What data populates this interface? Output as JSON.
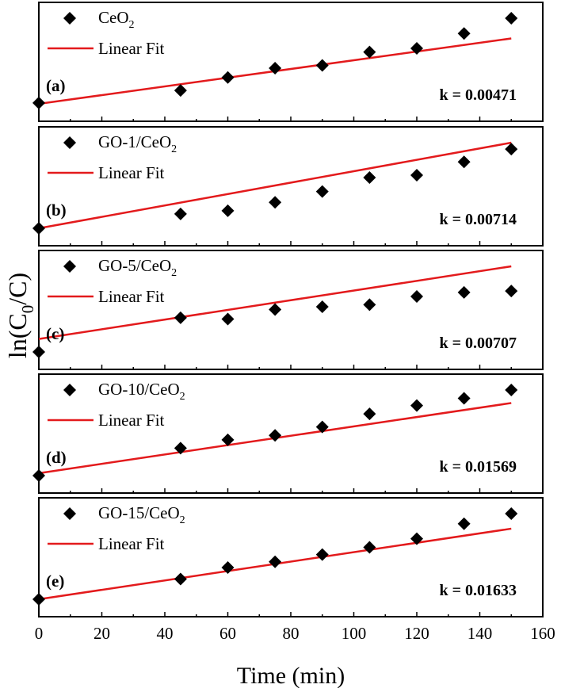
{
  "figure": {
    "ylabel_main": "ln(C",
    "ylabel_sub": "0",
    "ylabel_tail": "/C)",
    "xlabel": "Time (min)"
  },
  "chart_data": {
    "type": "scatter",
    "shared_x_axis": {
      "label": "Time (min)",
      "range": [
        0,
        160
      ],
      "ticks": [
        0,
        20,
        40,
        60,
        80,
        100,
        120,
        140,
        160
      ],
      "minor_step": 10
    },
    "y_axis_label": "ln(C0/C)",
    "grid": false,
    "legend_position": "top-left",
    "panels": [
      {
        "panel_label": "(a)",
        "series_name_main": "CeO",
        "series_name_sub": "2",
        "fit_label": "Linear Fit",
        "k_label": "k = 0.00471",
        "x": [
          0,
          45,
          60,
          75,
          90,
          105,
          120,
          135,
          150
        ],
        "y": [
          0.01,
          0.145,
          0.285,
          0.385,
          0.415,
          0.56,
          0.6,
          0.76,
          0.925
        ],
        "fit": {
          "intercept": 0.0,
          "slope": 0.00471
        }
      },
      {
        "panel_label": "(b)",
        "series_name_main": "GO-1/CeO",
        "series_name_sub": "2",
        "fit_label": "Linear Fit",
        "k_label": "k = 0.00714",
        "x": [
          0,
          45,
          60,
          75,
          90,
          105,
          120,
          135,
          150
        ],
        "y": [
          0.0,
          0.18,
          0.22,
          0.325,
          0.46,
          0.635,
          0.665,
          0.83,
          0.99
        ],
        "fit": {
          "intercept": 0.0,
          "slope": 0.00714
        }
      },
      {
        "panel_label": "(c)",
        "series_name_main": "GO-5/CeO",
        "series_name_sub": "2",
        "fit_label": "Linear Fit",
        "k_label": "k = 0.00707",
        "x": [
          0,
          45,
          60,
          75,
          90,
          105,
          120,
          135,
          150
        ],
        "y": [
          -0.01,
          0.49,
          0.47,
          0.61,
          0.65,
          0.68,
          0.8,
          0.86,
          0.88
        ],
        "fit": {
          "intercept": 0.18,
          "slope": 0.00707
        }
      },
      {
        "panel_label": "(d)",
        "series_name_main": "GO-10/CeO",
        "series_name_sub": "2",
        "fit_label": "Linear Fit",
        "k_label": "k = 0.01569",
        "x": [
          0,
          45,
          60,
          75,
          90,
          105,
          120,
          135,
          150
        ],
        "y": [
          0.05,
          0.97,
          1.25,
          1.4,
          1.68,
          2.12,
          2.4,
          2.64,
          2.92
        ],
        "fit": {
          "intercept": 0.13,
          "slope": 0.01569
        }
      },
      {
        "panel_label": "(e)",
        "series_name_main": "GO-15/CeO",
        "series_name_sub": "2",
        "fit_label": "Linear Fit",
        "k_label": "k = 0.01633",
        "x": [
          0,
          45,
          60,
          75,
          90,
          105,
          120,
          135,
          150
        ],
        "y": [
          0.0,
          0.7,
          1.1,
          1.3,
          1.55,
          1.8,
          2.1,
          2.62,
          2.97
        ],
        "fit": {
          "intercept": 0.0,
          "slope": 0.01633
        }
      }
    ]
  },
  "colors": {
    "marker": "#000000",
    "fit_line": "#e31a1c",
    "frame": "#000000"
  },
  "icons": {
    "marker": "diamond-marker-icon",
    "fit": "red-line-icon"
  }
}
